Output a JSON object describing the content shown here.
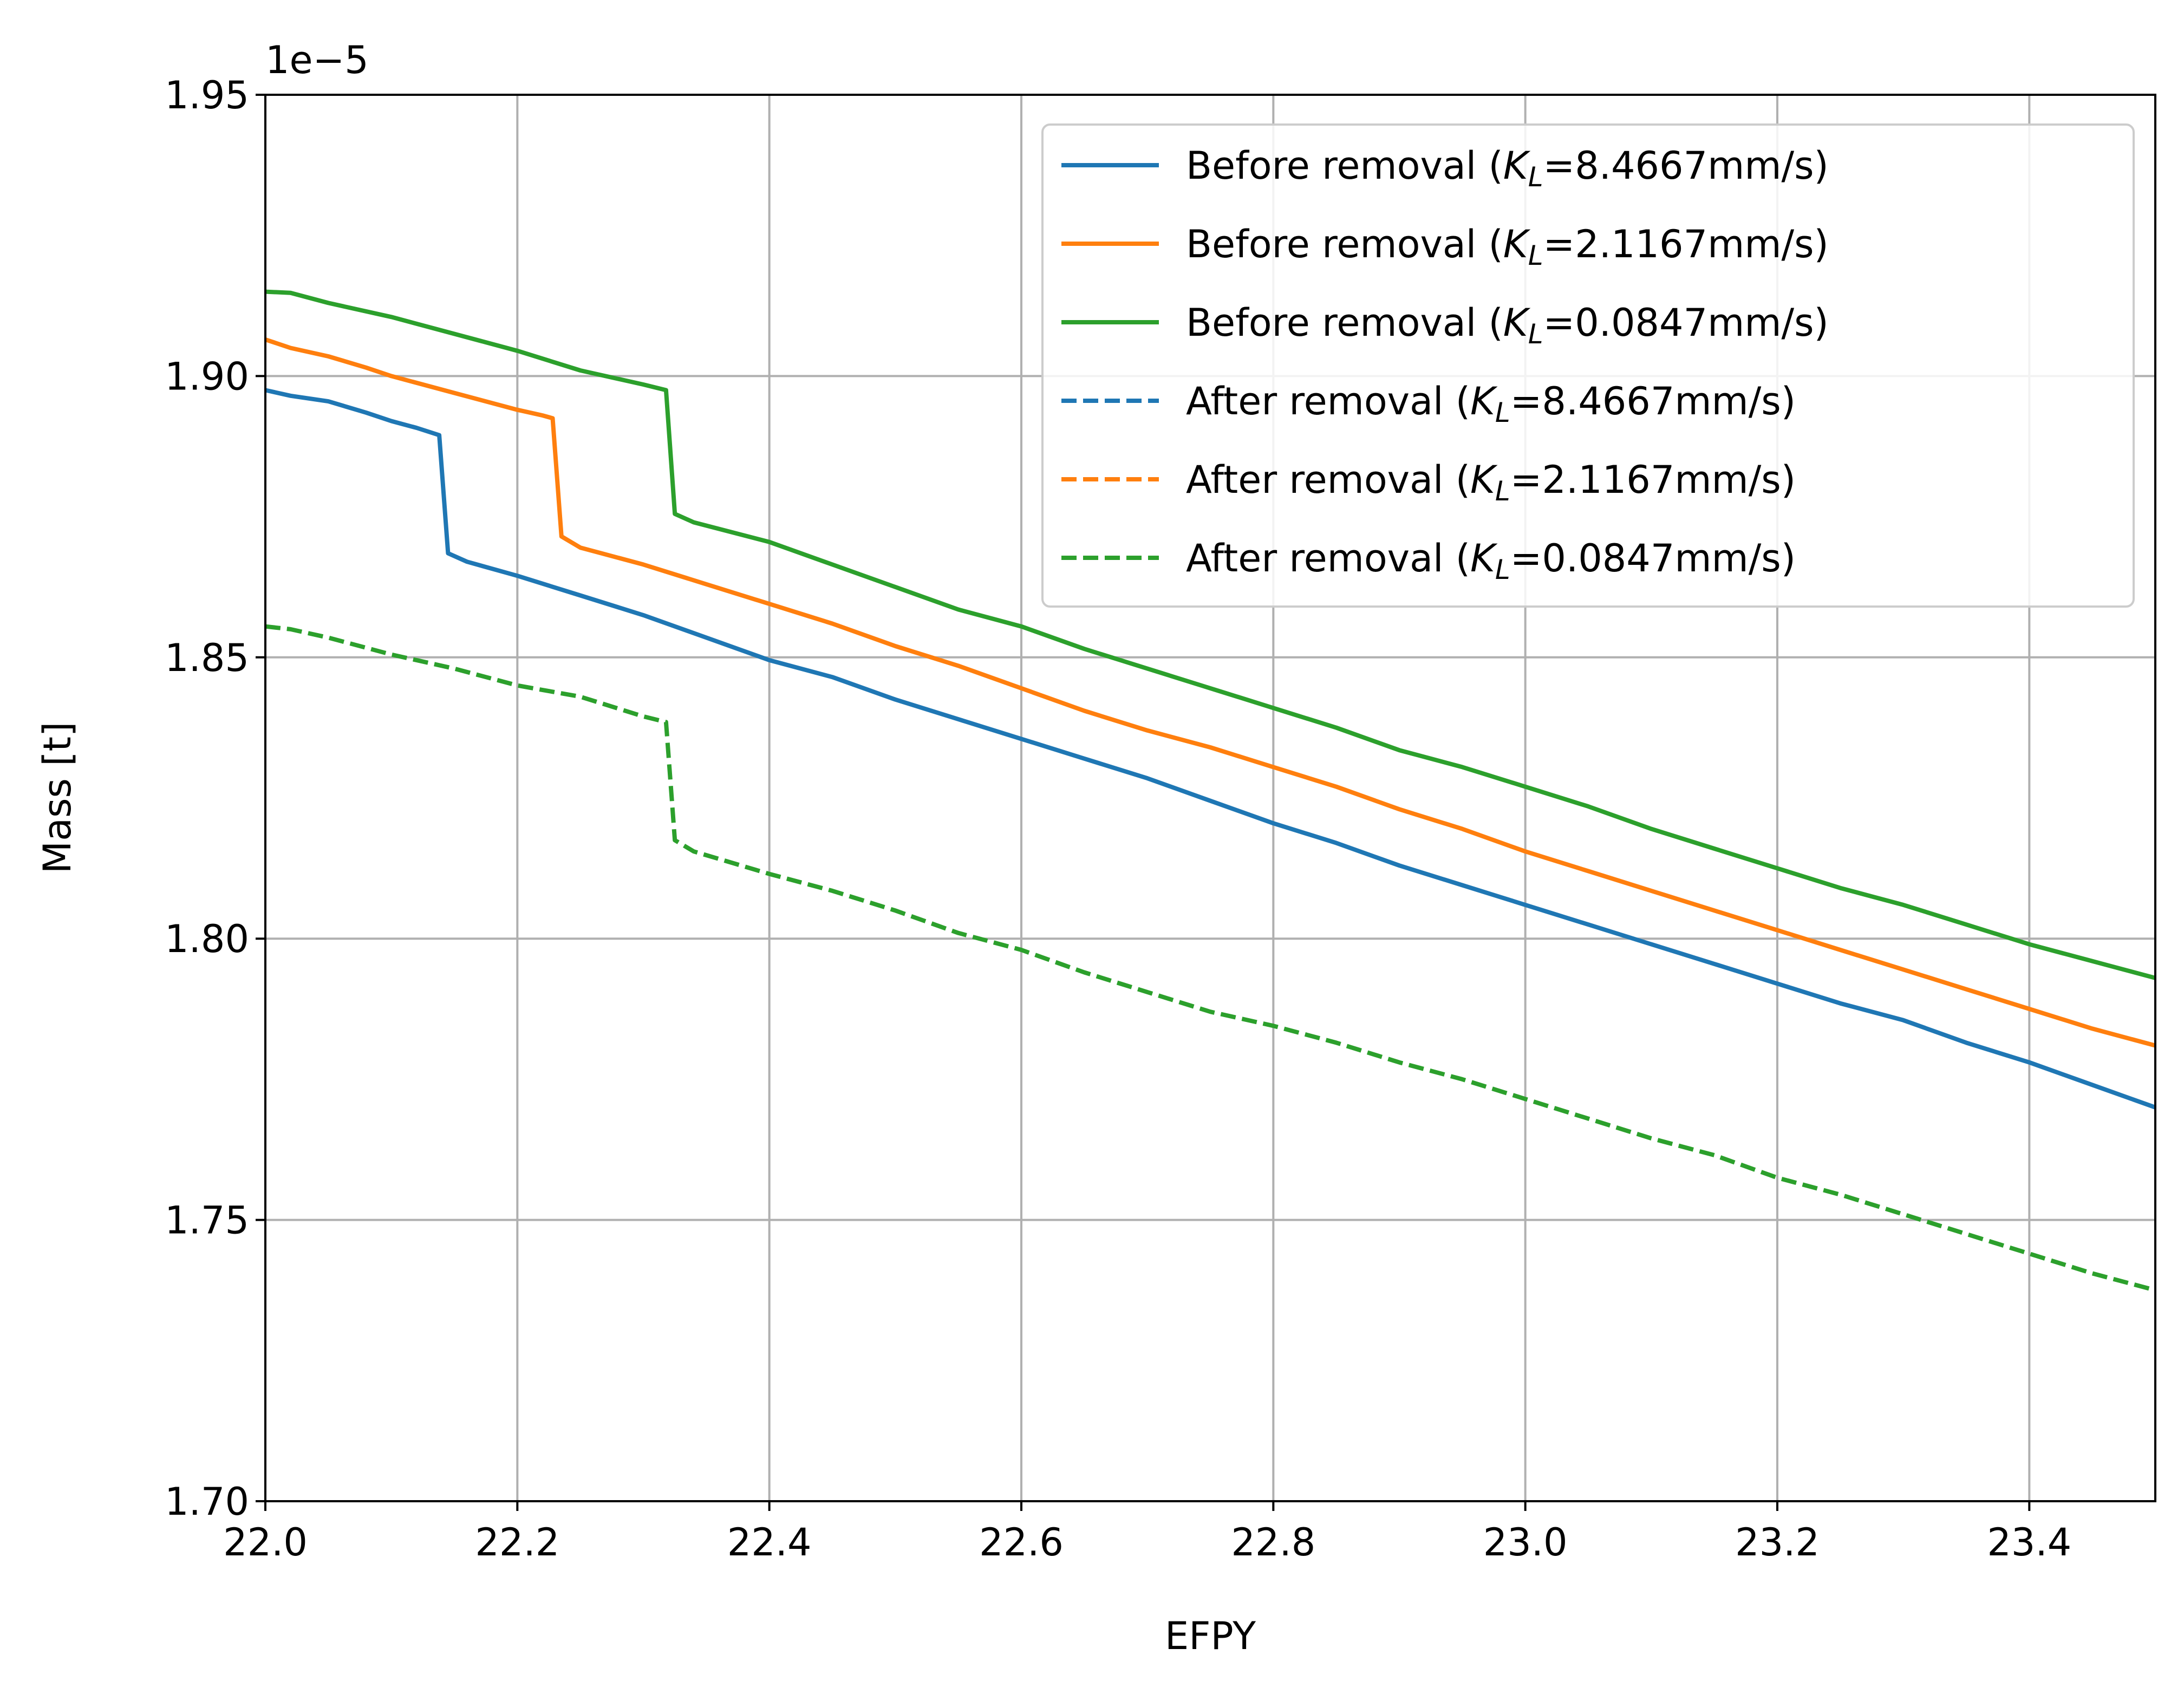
{
  "chart_data": {
    "type": "line",
    "title": "",
    "xlabel": "EFPY",
    "ylabel": "Mass [t]",
    "y_offset_label": "1e−5",
    "xlim": [
      22.0,
      23.5
    ],
    "ylim": [
      1.7,
      1.95
    ],
    "x_ticks": [
      22.0,
      22.2,
      22.4,
      22.6,
      22.8,
      23.0,
      23.2,
      23.4
    ],
    "x_tick_labels": [
      "22.0",
      "22.2",
      "22.4",
      "22.6",
      "22.8",
      "23.0",
      "23.2",
      "23.4"
    ],
    "y_ticks": [
      1.7,
      1.75,
      1.8,
      1.85,
      1.9,
      1.95
    ],
    "y_tick_labels": [
      "1.70",
      "1.75",
      "1.80",
      "1.85",
      "1.90",
      "1.95"
    ],
    "grid": true,
    "legend_position": "top-right",
    "colors": {
      "blue": "#1f77b4",
      "orange": "#ff7f0e",
      "green": "#2ca02c"
    },
    "series": [
      {
        "name": "Before removal (K_L=8.4667mm/s)",
        "legend_prefix": "Before removal (",
        "legend_value": "=8.4667mm/s)",
        "color": "#1f77b4",
        "dashed": false,
        "x": [
          22.0,
          22.02,
          22.05,
          22.08,
          22.1,
          22.12,
          22.138,
          22.145,
          22.16,
          22.2,
          22.25,
          22.3,
          22.35,
          22.4,
          22.45,
          22.5,
          22.55,
          22.6,
          22.65,
          22.7,
          22.75,
          22.8,
          22.85,
          22.9,
          22.95,
          23.0,
          23.05,
          23.1,
          23.15,
          23.2,
          23.25,
          23.3,
          23.35,
          23.4,
          23.45,
          23.5
        ],
        "y": [
          1.8975,
          1.8965,
          1.8955,
          1.8935,
          1.892,
          1.8908,
          1.8895,
          1.8685,
          1.867,
          1.8645,
          1.861,
          1.8575,
          1.8535,
          1.8495,
          1.8465,
          1.8425,
          1.839,
          1.8355,
          1.832,
          1.8285,
          1.8245,
          1.8205,
          1.817,
          1.813,
          1.8095,
          1.806,
          1.8025,
          1.799,
          1.7955,
          1.792,
          1.7885,
          1.7855,
          1.7815,
          1.778,
          1.774,
          1.77
        ]
      },
      {
        "name": "Before removal (K_L=2.1167mm/s)",
        "legend_prefix": "Before removal (",
        "legend_value": "=2.1167mm/s)",
        "color": "#ff7f0e",
        "dashed": false,
        "x": [
          22.0,
          22.02,
          22.05,
          22.08,
          22.1,
          22.15,
          22.2,
          22.22,
          22.228,
          22.235,
          22.25,
          22.3,
          22.35,
          22.4,
          22.45,
          22.5,
          22.55,
          22.6,
          22.65,
          22.7,
          22.75,
          22.8,
          22.85,
          22.9,
          22.95,
          23.0,
          23.05,
          23.1,
          23.15,
          23.2,
          23.25,
          23.3,
          23.35,
          23.4,
          23.45,
          23.5
        ],
        "y": [
          1.9065,
          1.905,
          1.9035,
          1.9015,
          1.9,
          1.897,
          1.894,
          1.893,
          1.8925,
          1.8715,
          1.8695,
          1.8665,
          1.863,
          1.8595,
          1.856,
          1.852,
          1.8485,
          1.8445,
          1.8405,
          1.837,
          1.834,
          1.8305,
          1.827,
          1.823,
          1.8195,
          1.8155,
          1.812,
          1.8085,
          1.805,
          1.8015,
          1.798,
          1.7945,
          1.791,
          1.7875,
          1.784,
          1.781
        ]
      },
      {
        "name": "Before removal (K_L=0.0847mm/s)",
        "legend_prefix": "Before removal (",
        "legend_value": "=0.0847mm/s)",
        "color": "#2ca02c",
        "dashed": false,
        "x": [
          22.0,
          22.02,
          22.05,
          22.1,
          22.15,
          22.2,
          22.25,
          22.3,
          22.318,
          22.325,
          22.34,
          22.4,
          22.45,
          22.5,
          22.55,
          22.6,
          22.65,
          22.7,
          22.75,
          22.8,
          22.85,
          22.9,
          22.95,
          23.0,
          23.05,
          23.1,
          23.15,
          23.2,
          23.25,
          23.3,
          23.35,
          23.4,
          23.45,
          23.5
        ],
        "y": [
          1.915,
          1.9148,
          1.913,
          1.9105,
          1.9075,
          1.9045,
          1.901,
          1.8985,
          1.8975,
          1.8755,
          1.874,
          1.8705,
          1.8665,
          1.8625,
          1.8585,
          1.8555,
          1.8515,
          1.848,
          1.8445,
          1.841,
          1.8375,
          1.8335,
          1.8305,
          1.827,
          1.8235,
          1.8195,
          1.816,
          1.8125,
          1.809,
          1.806,
          1.8025,
          1.799,
          1.796,
          1.793
        ]
      },
      {
        "name": "After removal (K_L=8.4667mm/s)",
        "legend_prefix": "After removal (",
        "legend_value": "=8.4667mm/s)",
        "color": "#1f77b4",
        "dashed": true,
        "x": [],
        "y": []
      },
      {
        "name": "After removal (K_L=2.1167mm/s)",
        "legend_prefix": "After removal (",
        "legend_value": "=2.1167mm/s)",
        "color": "#ff7f0e",
        "dashed": true,
        "x": [],
        "y": []
      },
      {
        "name": "After removal (K_L=0.0847mm/s)",
        "legend_prefix": "After removal (",
        "legend_value": "=0.0847mm/s)",
        "color": "#2ca02c",
        "dashed": true,
        "x": [
          22.0,
          22.02,
          22.05,
          22.1,
          22.15,
          22.2,
          22.25,
          22.3,
          22.318,
          22.325,
          22.34,
          22.4,
          22.45,
          22.5,
          22.55,
          22.6,
          22.65,
          22.7,
          22.75,
          22.8,
          22.85,
          22.9,
          22.95,
          23.0,
          23.05,
          23.1,
          23.15,
          23.2,
          23.25,
          23.3,
          23.35,
          23.4,
          23.45,
          23.5
        ],
        "y": [
          1.8555,
          1.855,
          1.8535,
          1.8505,
          1.848,
          1.845,
          1.843,
          1.8395,
          1.8385,
          1.8175,
          1.8155,
          1.8115,
          1.8085,
          1.805,
          1.801,
          1.798,
          1.794,
          1.7905,
          1.787,
          1.7845,
          1.7815,
          1.778,
          1.775,
          1.7715,
          1.768,
          1.7645,
          1.7615,
          1.7575,
          1.7545,
          1.751,
          1.7475,
          1.744,
          1.7405,
          1.7375
        ]
      }
    ]
  }
}
